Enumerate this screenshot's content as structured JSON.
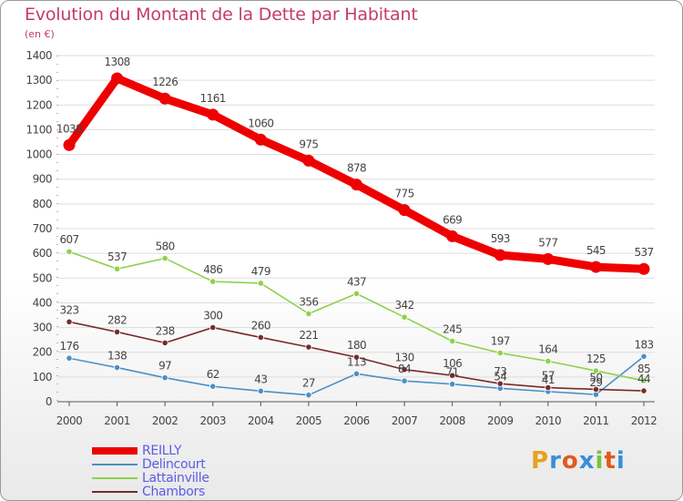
{
  "header": {
    "title": "Evolution du Montant de la Dette par Habitant",
    "unit": "(en €)"
  },
  "logo": {
    "text": "Proxiti",
    "colors": [
      "#e6a21c",
      "#3a8fd6",
      "#e05a1a",
      "#3a8fd6",
      "#7cc142",
      "#e05a1a",
      "#3a8fd6"
    ]
  },
  "colors": {
    "title": "#c43a6e",
    "legend_text": "#5b5be6",
    "axis_text": "#444444",
    "grid": "#dddddd"
  },
  "chart_data": {
    "type": "line",
    "title": "Evolution du Montant de la Dette par Habitant",
    "ylabel": "(en €)",
    "xlabel": "",
    "x": [
      "2000",
      "2001",
      "2002",
      "2003",
      "2004",
      "2005",
      "2006",
      "2007",
      "2008",
      "2009",
      "2010",
      "2011",
      "2012"
    ],
    "ylim": [
      0,
      1400
    ],
    "yticks": [
      0,
      100,
      200,
      300,
      400,
      500,
      600,
      700,
      800,
      900,
      1000,
      1100,
      1200,
      1300,
      1400
    ],
    "grid": "horizontal",
    "legend_position": "bottom-left",
    "series": [
      {
        "name": "REILLY",
        "color": "#ee0000",
        "values": [
          1038,
          1308,
          1226,
          1161,
          1060,
          975,
          878,
          775,
          669,
          593,
          577,
          545,
          537
        ],
        "labels": [
          "1038",
          "1308",
          "1226",
          "1161",
          "1060",
          "975",
          "878",
          "775",
          "669",
          "593",
          "577",
          "545",
          "537"
        ]
      },
      {
        "name": "Delincourt",
        "color": "#4a90c8",
        "values": [
          176,
          138,
          97,
          62,
          43,
          27,
          113,
          84,
          71,
          54,
          41,
          29,
          183
        ],
        "labels": [
          "176",
          "138",
          "97",
          "62",
          "43",
          "27",
          "113",
          "84",
          "71",
          "54",
          "41",
          "29",
          "183"
        ]
      },
      {
        "name": "Lattainville",
        "color": "#8ed14a",
        "values": [
          607,
          537,
          580,
          486,
          479,
          356,
          437,
          342,
          245,
          197,
          164,
          125,
          85
        ],
        "labels": [
          "607",
          "537",
          "580",
          "486",
          "479",
          "356",
          "437",
          "342",
          "245",
          "197",
          "164",
          "125",
          "85"
        ]
      },
      {
        "name": "Chambors",
        "color": "#7a2a2a",
        "values": [
          323,
          282,
          238,
          300,
          260,
          221,
          180,
          130,
          106,
          73,
          57,
          50,
          44
        ],
        "labels": [
          "323",
          "282",
          "238",
          "300",
          "260",
          "221",
          "180",
          "130",
          "106",
          "73",
          "57",
          "50",
          "44"
        ]
      }
    ]
  }
}
